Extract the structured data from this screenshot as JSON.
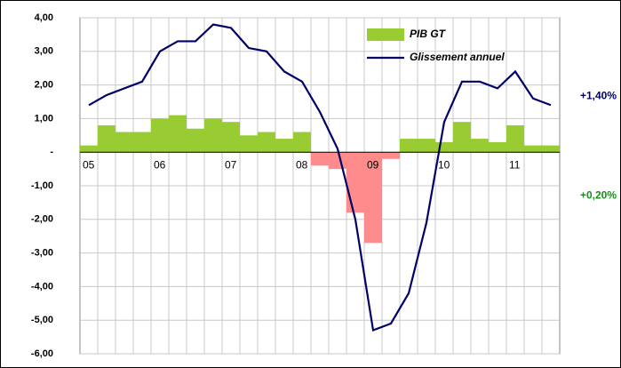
{
  "chart_data": {
    "type": "bar-line",
    "categories": [
      "05",
      null,
      null,
      null,
      "06",
      null,
      null,
      null,
      "07",
      null,
      null,
      null,
      "08",
      null,
      null,
      null,
      "09",
      null,
      null,
      null,
      "10",
      null,
      null,
      null,
      "11",
      null,
      null
    ],
    "series": [
      {
        "name": "PIB GT",
        "type": "bar",
        "color": "#99cc33",
        "negative_color": "#ff8c8c",
        "values": [
          0.2,
          0.8,
          0.6,
          0.6,
          1.0,
          1.1,
          0.7,
          1.0,
          0.9,
          0.5,
          0.6,
          0.4,
          0.6,
          -0.4,
          -0.5,
          -1.8,
          -2.7,
          -0.2,
          0.4,
          0.4,
          0.3,
          0.9,
          0.4,
          0.3,
          0.8,
          0.2,
          0.2
        ]
      },
      {
        "name": "Glissement annuel",
        "type": "line",
        "color": "#000066",
        "values": [
          1.4,
          1.7,
          1.9,
          2.1,
          3.0,
          3.3,
          3.3,
          3.8,
          3.7,
          3.1,
          3.0,
          2.4,
          2.1,
          1.2,
          0.1,
          -2.0,
          -5.3,
          -5.1,
          -4.2,
          -2.1,
          0.9,
          2.1,
          2.1,
          1.9,
          2.4,
          1.6,
          1.4
        ]
      }
    ],
    "ylim": [
      -6,
      4
    ],
    "yticks": [
      {
        "value": 4,
        "label": "4,00"
      },
      {
        "value": 3,
        "label": "3,00"
      },
      {
        "value": 2,
        "label": "2,00"
      },
      {
        "value": 1,
        "label": "1,00"
      },
      {
        "value": 0,
        "label": "-"
      },
      {
        "value": -1,
        "label": "-1,00"
      },
      {
        "value": -2,
        "label": "-2,00"
      },
      {
        "value": -3,
        "label": "-3,00"
      },
      {
        "value": -4,
        "label": "-4,00"
      },
      {
        "value": -5,
        "label": "-5,00"
      },
      {
        "value": -6,
        "label": "-6,00"
      }
    ],
    "grid": true,
    "legend": "upper right",
    "annotations": [
      {
        "text": "+1,40%",
        "color": "#000066"
      },
      {
        "text": "+0,20%",
        "color": "#1a8c1a"
      }
    ]
  }
}
